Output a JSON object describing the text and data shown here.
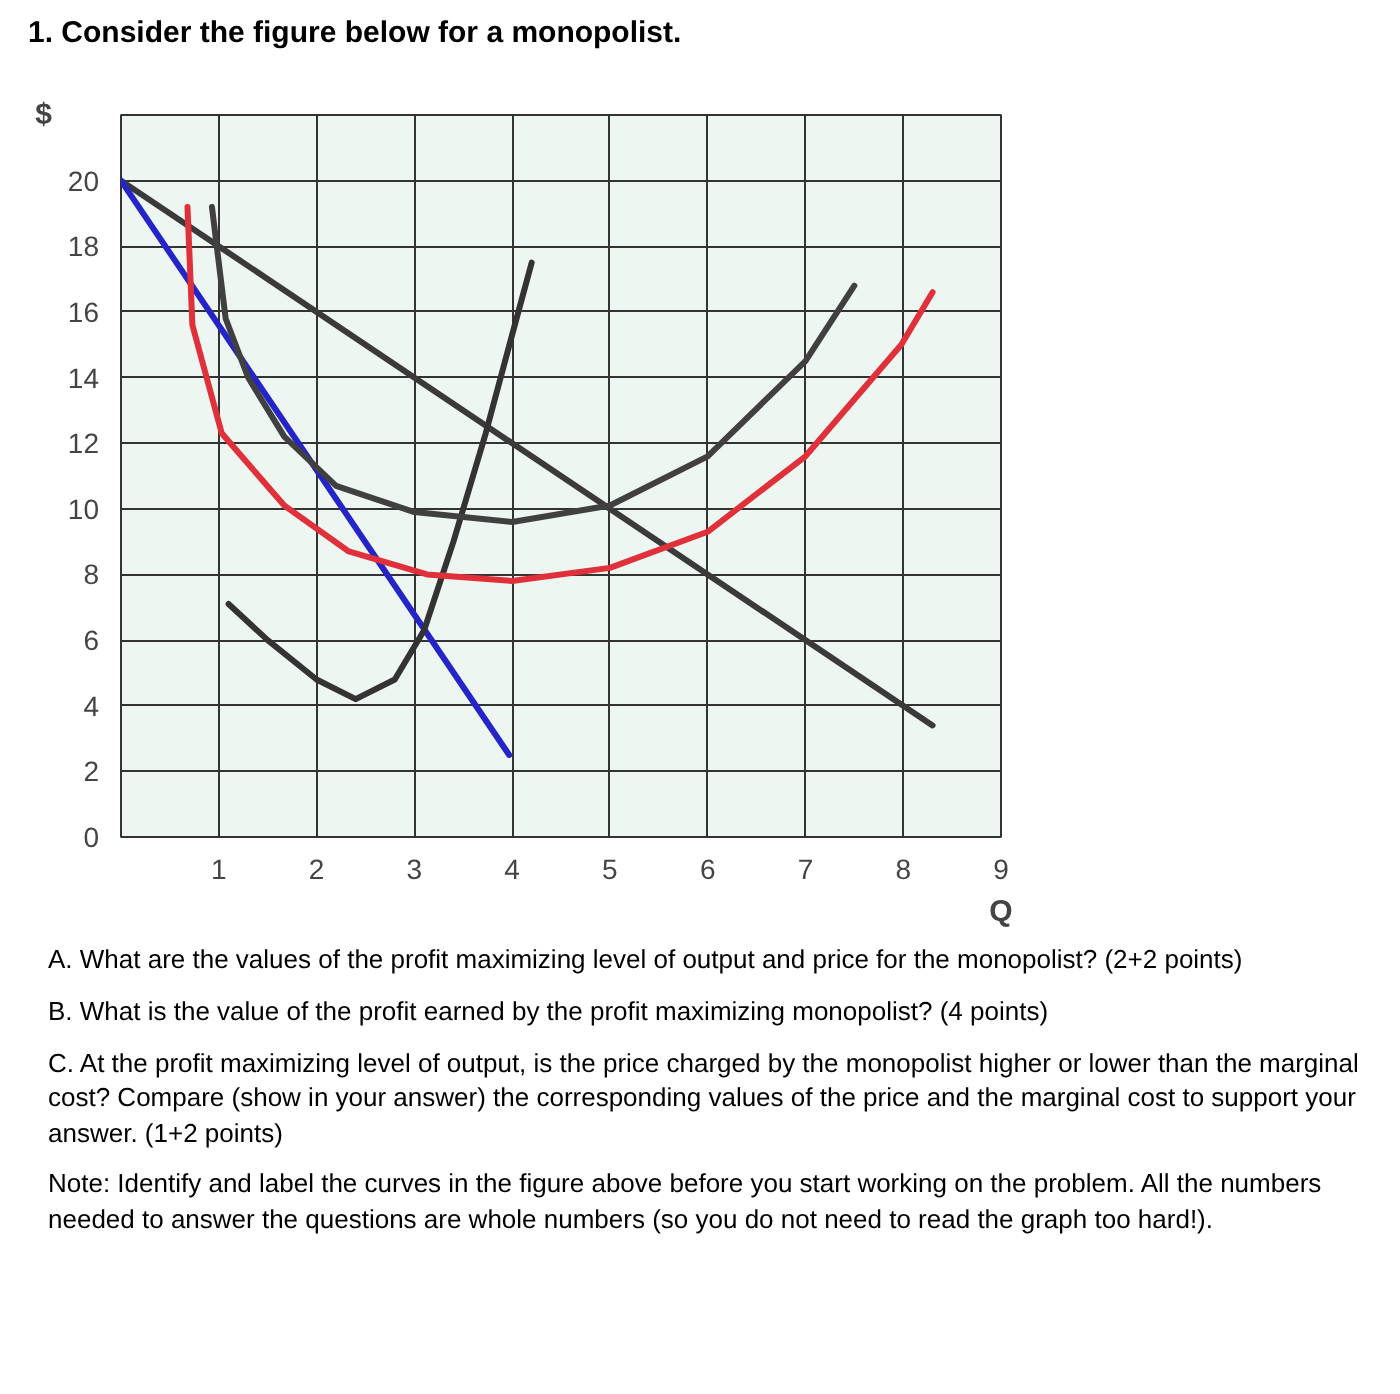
{
  "chart_data": {
    "type": "line",
    "title": "1. Consider the figure below for a monopolist.",
    "xlabel": "Q",
    "ylabel": "$",
    "xlim": [
      0,
      9
    ],
    "ylim": [
      0,
      22
    ],
    "xticks": [
      1,
      2,
      3,
      4,
      5,
      6,
      7,
      8,
      9
    ],
    "yticks": [
      0,
      2,
      4,
      6,
      8,
      10,
      12,
      14,
      16,
      18,
      20
    ],
    "grid": true,
    "marker": "none",
    "line_style": "solid",
    "series": [
      {
        "color": "#3a3a3a",
        "x": [
          0,
          8.3
        ],
        "values": [
          20,
          3.4
        ]
      },
      {
        "color": "#2424c8",
        "x": [
          0,
          3.97
        ],
        "values": [
          20,
          2.5
        ]
      },
      {
        "color": "#333333",
        "x": [
          1.1,
          1.5,
          2.0,
          2.4,
          2.8,
          3.1,
          3.4,
          3.73,
          4.0,
          4.2
        ],
        "values": [
          7.1,
          6.0,
          4.8,
          4.2,
          4.8,
          6.3,
          9.0,
          12.3,
          15.3,
          17.5
        ]
      },
      {
        "color": "#404040",
        "x": [
          0.93,
          1.07,
          1.3,
          1.67,
          2.2,
          3.0,
          4.0,
          5.0,
          6.0,
          7.0,
          7.5
        ],
        "values": [
          19.2,
          15.8,
          14.0,
          12.2,
          10.7,
          9.9,
          9.6,
          10.1,
          11.6,
          14.5,
          16.8
        ]
      },
      {
        "color": "#e0303a",
        "x": [
          0.68,
          0.73,
          1.03,
          1.67,
          2.33,
          3.13,
          4.0,
          5.0,
          6.0,
          7.0,
          7.98,
          8.3
        ],
        "values": [
          19.2,
          15.6,
          12.3,
          10.1,
          8.7,
          8.0,
          7.8,
          8.2,
          9.3,
          11.6,
          15.0,
          16.6
        ]
      }
    ],
    "annotations": [
      "A. What are the values of the profit maximizing level of output and price for the monopolist? (2+2 points)",
      "B. What is the value of the profit earned by the profit maximizing monopolist? (4 points)",
      "C. At the profit maximizing level of output, is the price charged by the monopolist higher or lower than the marginal cost? Compare (show in your answer) the corresponding values of the price and the marginal cost to support your answer. (1+2 points)",
      "Note: Identify and label the curves in the figure above before you start working on the problem. All the numbers needed to answer the questions are whole numbers (so you do not need to read the graph too hard!)."
    ]
  }
}
